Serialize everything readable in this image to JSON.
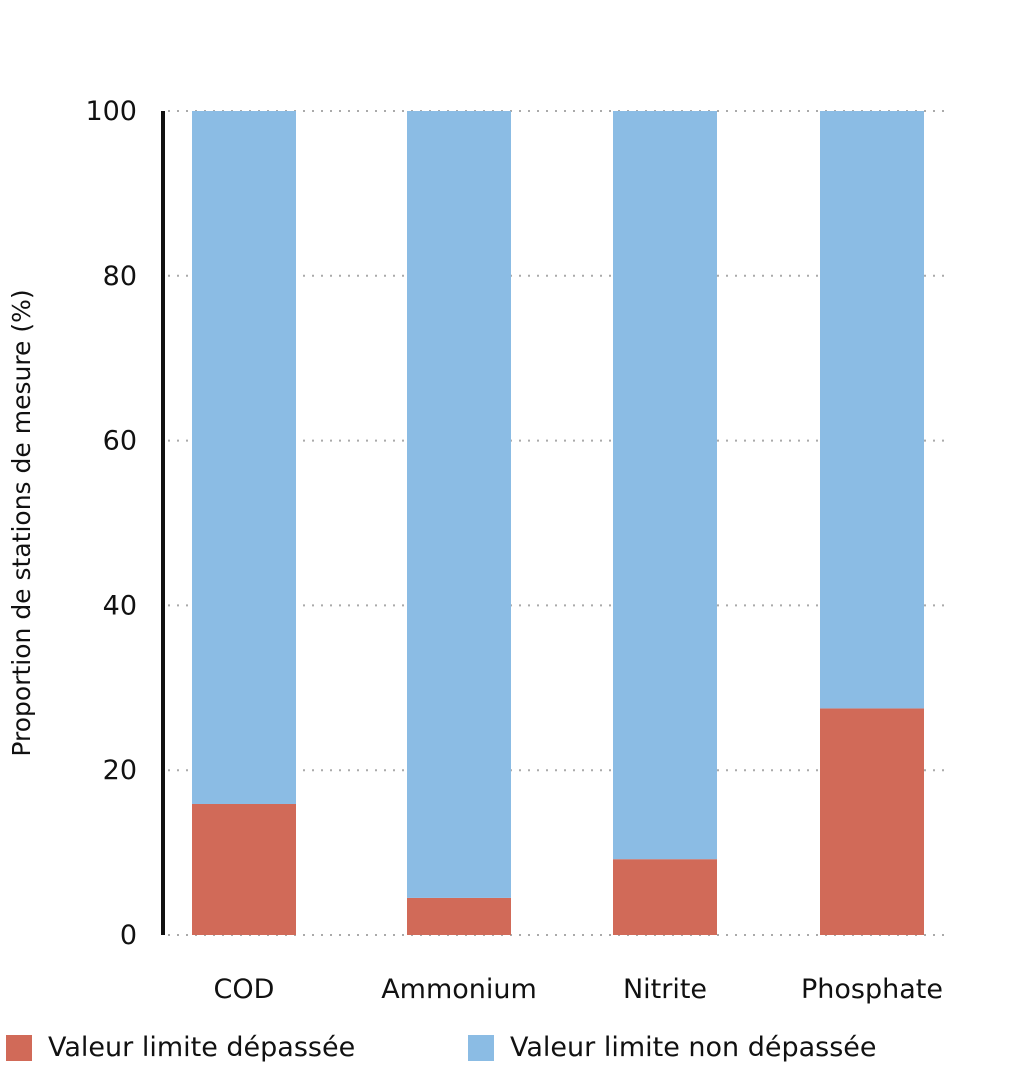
{
  "chart_data": {
    "type": "bar",
    "stacked": true,
    "title": "",
    "xlabel": "",
    "ylabel": "Proportion de stations de mesure (%)",
    "ylim": [
      0,
      100
    ],
    "yticks": [
      0,
      20,
      40,
      60,
      80,
      100
    ],
    "grid": true,
    "categories": [
      "COD",
      "Ammonium",
      "Nitrite",
      "Phosphate"
    ],
    "series": [
      {
        "name": "Valeur limite dépassée",
        "color": "#d16a58",
        "values": [
          15.9,
          4.5,
          9.2,
          27.5
        ]
      },
      {
        "name": "Valeur limite non dépassée",
        "color": "#8bbce4",
        "values": [
          84.1,
          95.5,
          90.8,
          72.5
        ]
      }
    ],
    "legend_position": "bottom"
  }
}
